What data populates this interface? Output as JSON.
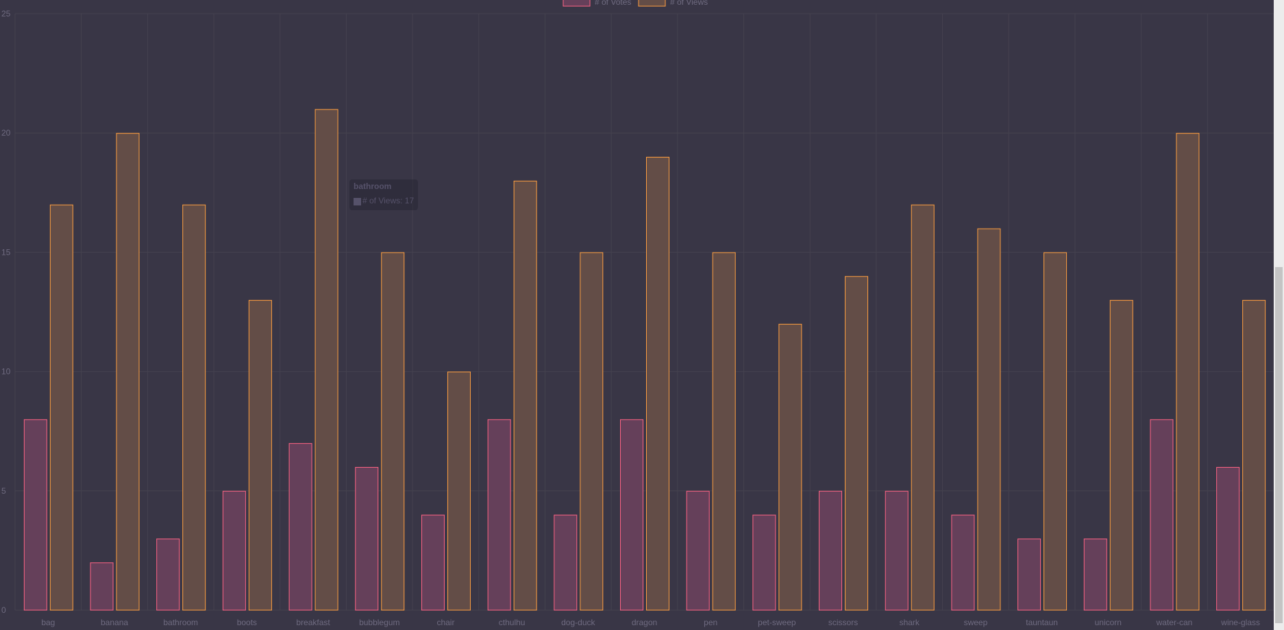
{
  "chart_data": {
    "type": "bar",
    "categories": [
      "bag",
      "banana",
      "bathroom",
      "boots",
      "breakfast",
      "bubblegum",
      "chair",
      "cthulhu",
      "dog-duck",
      "dragon",
      "pen",
      "pet-sweep",
      "scissors",
      "shark",
      "sweep",
      "tauntaun",
      "unicorn",
      "water-can",
      "wine-glass"
    ],
    "series": [
      {
        "name": "# of Votes",
        "values": [
          8,
          2,
          3,
          5,
          7,
          6,
          4,
          8,
          4,
          8,
          5,
          4,
          5,
          5,
          4,
          3,
          3,
          8,
          6
        ],
        "color": "#ff6384",
        "fill": "#65405a"
      },
      {
        "name": "# of Views",
        "values": [
          17,
          20,
          17,
          13,
          21,
          15,
          10,
          18,
          15,
          19,
          15,
          12,
          14,
          17,
          16,
          15,
          13,
          20,
          13
        ],
        "color": "#ff9f40",
        "fill": "#634d47"
      }
    ],
    "ylim": [
      0,
      25
    ],
    "yticks": [
      0,
      5,
      10,
      15,
      20,
      25
    ],
    "grid": true,
    "legend": "top-center"
  },
  "tooltip": {
    "title": "bathroom",
    "body": "# of Views: 17"
  },
  "colors": {
    "background": "#393646",
    "grid": "#45424f",
    "tick_text": "#6f6b80"
  }
}
